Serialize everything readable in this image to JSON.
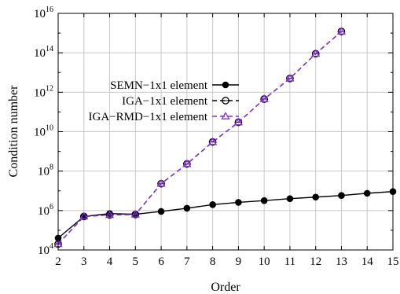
{
  "chart_data": {
    "type": "line",
    "title": "",
    "xlabel": "Order",
    "ylabel": "Condition number",
    "yscale": "log",
    "xlim": [
      2,
      15
    ],
    "ylim_exp": [
      4,
      16
    ],
    "x_ticks": [
      2,
      3,
      4,
      5,
      6,
      7,
      8,
      9,
      10,
      11,
      12,
      13,
      14,
      15
    ],
    "y_tick_labels": [
      {
        "exp": 4,
        "base": "10",
        "sup": "4"
      },
      {
        "exp": 6,
        "base": "10",
        "sup": "6"
      },
      {
        "exp": 8,
        "base": "10",
        "sup": "8"
      },
      {
        "exp": 10,
        "base": "10",
        "sup": "10"
      },
      {
        "exp": 12,
        "base": "10",
        "sup": "12"
      },
      {
        "exp": 14,
        "base": "10",
        "sup": "14"
      },
      {
        "exp": 16,
        "base": "10",
        "sup": "16"
      }
    ],
    "grid": true,
    "legend_position": "upper-left",
    "series": [
      {
        "name": "SEMN−1x1 element",
        "color": "#000000",
        "dash": "solid",
        "marker": "filled-circle",
        "x": [
          2,
          3,
          4,
          5,
          6,
          7,
          8,
          9,
          10,
          11,
          12,
          13,
          14,
          15
        ],
        "y": [
          40000,
          500000,
          700000,
          650000,
          900000,
          1300000,
          2000000,
          2600000,
          3200000,
          4000000,
          4800000,
          5800000,
          7500000,
          9200000
        ]
      },
      {
        "name": "IGA−1x1 element",
        "color": "#000000",
        "dash": "dashed",
        "marker": "open-circle",
        "x": [
          2,
          3,
          4,
          5,
          6,
          7,
          8,
          9,
          10,
          11,
          12,
          13
        ],
        "y": [
          20000,
          500000,
          600000,
          630000,
          23000000,
          230000000,
          3000000000,
          30000000000,
          450000000000,
          5000000000000,
          90000000000000,
          1200000000000000
        ]
      },
      {
        "name": "IGA−RMD−1x1 element",
        "color": "#8a2be2",
        "dash": "dashed",
        "marker": "open-triangle",
        "x": [
          2,
          3,
          4,
          5,
          6,
          7,
          8,
          9,
          10,
          11,
          12,
          13
        ],
        "y": [
          20000,
          500000,
          600000,
          630000,
          23000000,
          230000000,
          3000000000,
          30000000000,
          450000000000,
          5000000000000,
          90000000000000,
          1200000000000000
        ]
      }
    ]
  }
}
